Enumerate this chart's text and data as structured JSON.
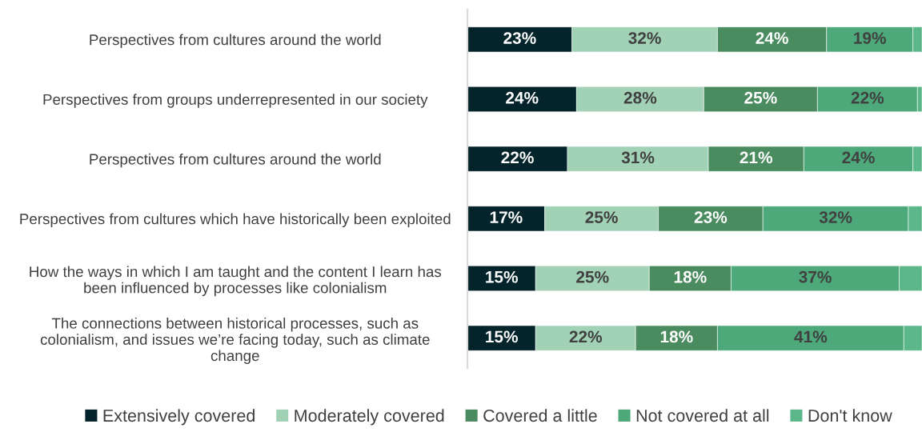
{
  "chart_data": {
    "type": "bar",
    "orientation": "horizontal",
    "stacked": true,
    "categories": [
      "Perspectives from cultures around the world",
      "Perspectives from groups underrepresented in our society",
      "Perspectives from cultures around the world",
      "Perspectives from cultures which have historically been exploited",
      "How the ways in which I am taught and the content I learn has been influenced by processes like colonialism",
      "The connections between historical processes, such as colonialism, and issues we’re facing today, such as climate change"
    ],
    "series": [
      {
        "name": "Extensively covered",
        "color": "#04242b",
        "values": [
          23,
          24,
          22,
          17,
          15,
          15
        ],
        "value_labels": [
          "23%",
          "24%",
          "22%",
          "17%",
          "15%",
          "15%"
        ]
      },
      {
        "name": "Moderately covered",
        "color": "#a2d2b5",
        "values": [
          32,
          28,
          31,
          25,
          25,
          22
        ],
        "value_labels": [
          "32%",
          "28%",
          "31%",
          "25%",
          "25%",
          "22%"
        ]
      },
      {
        "name": "Covered a little",
        "color": "#4a8b60",
        "values": [
          24,
          25,
          21,
          23,
          18,
          18
        ],
        "value_labels": [
          "24%",
          "25%",
          "21%",
          "23%",
          "18%",
          "18%"
        ]
      },
      {
        "name": "Not covered at all",
        "color": "#4da87a",
        "values": [
          19,
          22,
          24,
          32,
          37,
          41
        ],
        "value_labels": [
          "19%",
          "22%",
          "24%",
          "32%",
          "37%",
          "41%"
        ]
      },
      {
        "name": "Don't know",
        "color": "#5bb689",
        "values": [
          2,
          1,
          2,
          3,
          5,
          4
        ],
        "value_labels": [
          null,
          null,
          null,
          null,
          null,
          null
        ]
      }
    ],
    "xlim": [
      0,
      100
    ],
    "tick_labels": false,
    "grid": false,
    "legend": "bottom"
  }
}
